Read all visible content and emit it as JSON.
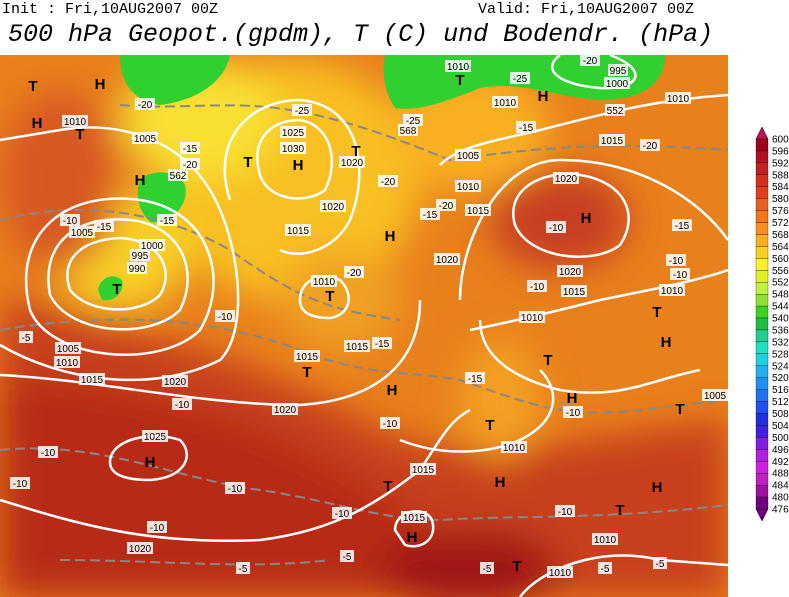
{
  "header": {
    "init": "Init : Fri,10AUG2007 00Z",
    "valid": "Valid: Fri,10AUG2007 00Z",
    "title": "500 hPa Geopot.(gpdm), T (C) und Bodendr. (hPa)"
  },
  "colorbar": {
    "labels": [
      600,
      596,
      592,
      588,
      584,
      580,
      576,
      572,
      568,
      564,
      560,
      556,
      552,
      548,
      544,
      540,
      536,
      532,
      528,
      524,
      520,
      516,
      512,
      508,
      504,
      500,
      496,
      492,
      488,
      484,
      480,
      476
    ],
    "colors": [
      "#c01050",
      "#a00020",
      "#b01020",
      "#c02020",
      "#d03020",
      "#e04020",
      "#e86020",
      "#f07818",
      "#f89020",
      "#f8b020",
      "#f8d020",
      "#f8f030",
      "#e0f028",
      "#c0f040",
      "#90e030",
      "#40d020",
      "#20c040",
      "#20d090",
      "#20e0c0",
      "#20d0e0",
      "#20b0f0",
      "#2090f0",
      "#2070f0",
      "#2050f0",
      "#2030e0",
      "#4020e0",
      "#8020e0",
      "#b020e0",
      "#d020e0",
      "#c020c0",
      "#a010a0",
      "#700080"
    ]
  },
  "map_labels": [
    "H",
    "T",
    "H",
    "1010",
    "T",
    "-20",
    "1005",
    "-15",
    "-20",
    "H",
    "T",
    "1025",
    "1030",
    "H",
    "-25",
    "T",
    "1020",
    "-20",
    "1020",
    "1015",
    "H",
    "1010",
    "T",
    "-20",
    "1015",
    "-15",
    "1015",
    "T",
    "H",
    "1020",
    "1020",
    "-10",
    "1025",
    "H",
    "-10",
    "-10",
    "-10",
    "-10",
    "1020",
    "-10",
    "1015",
    "H",
    "T",
    "-5",
    "-5",
    "1015",
    "-10",
    "1020",
    "-15",
    "T",
    "1010",
    "H",
    "-10",
    "T",
    "1010",
    "-5",
    "T",
    "1010",
    "-5",
    "-5",
    "H",
    "T",
    "1005",
    "H",
    "T",
    "1010",
    "-10",
    "-10",
    "-15",
    "H",
    "-10",
    "1020",
    "1020",
    "1015",
    "-10",
    "1010",
    "T",
    "H",
    "-10",
    "1015",
    "-20",
    "1010",
    "1005",
    "1010",
    "1015",
    "-20",
    "-15",
    "-15",
    "1010",
    "H",
    "-25",
    "-20",
    "995",
    "1000",
    "1010",
    "T",
    "-25",
    "568",
    "552",
    "562",
    "-10",
    "-15",
    "1005",
    "1000",
    "995",
    "990",
    "T",
    "-15",
    "-10",
    "-5",
    "1005",
    "1010",
    "1015"
  ]
}
